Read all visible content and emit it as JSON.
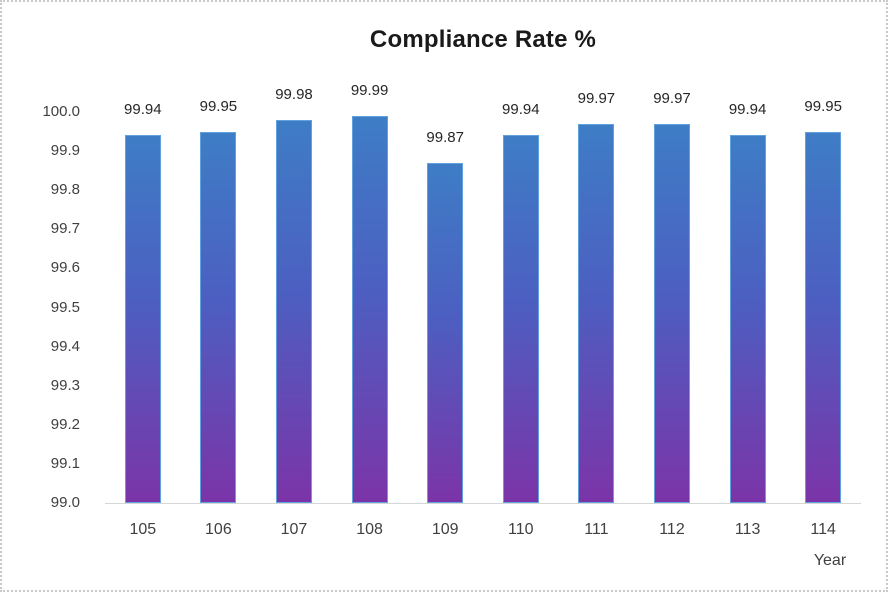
{
  "title": "Compliance Rate %",
  "chart_data": {
    "type": "bar",
    "title": "Compliance Rate %",
    "xlabel": "Year",
    "ylabel": "",
    "categories": [
      "105",
      "106",
      "107",
      "108",
      "109",
      "110",
      "111",
      "112",
      "113",
      "114"
    ],
    "values": [
      99.94,
      99.95,
      99.98,
      99.99,
      99.87,
      99.94,
      99.97,
      99.97,
      99.94,
      99.95
    ],
    "value_labels": [
      "99.94",
      "99.95",
      "99.98",
      "99.99",
      "99.87",
      "99.94",
      "99.97",
      "99.97",
      "99.94",
      "99.95"
    ],
    "ylim": [
      99.0,
      100.0
    ],
    "ytick_step": 0.1,
    "yticks": [
      "100.0",
      "99.9",
      "99.8",
      "99.7",
      "99.6",
      "99.5",
      "99.4",
      "99.3",
      "99.2",
      "99.1",
      "99.0"
    ],
    "grid": false,
    "legend": "none",
    "colors": {
      "bar_gradient_top": "#3e7dc6",
      "bar_gradient_mid": "#4c5fc1",
      "bar_gradient_bottom": "#7b34a8",
      "bar_border": "#62a2dc",
      "axis_line": "#d6d6d6",
      "tick_text": "#404040",
      "label_text": "#262626",
      "title_text": "#1a1a1a",
      "chart_border": "#c9c9c9",
      "background": "#ffffff"
    }
  }
}
